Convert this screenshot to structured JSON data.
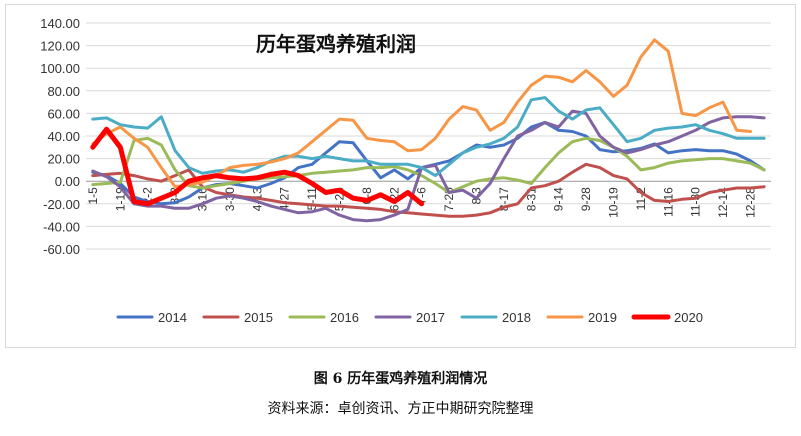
{
  "chart_data": {
    "type": "line",
    "title": "历年蛋鸡养殖利润",
    "xlabel": "",
    "ylabel": "",
    "ylim": [
      -60,
      140
    ],
    "y_ticks": [
      "140.00",
      "120.00",
      "100.00",
      "80.00",
      "60.00",
      "40.00",
      "20.00",
      "0.00",
      "-20.00",
      "-40.00",
      "-60.00"
    ],
    "x_ticks": [
      "1-5",
      "1-19",
      "2-2",
      "3-2",
      "3-16",
      "3-30",
      "4-13",
      "4-27",
      "5-11",
      "5-25",
      "6-8",
      "6-22",
      "7-6",
      "7-20",
      "8-3",
      "8-17",
      "8-31",
      "9-14",
      "9-28",
      "10-19",
      "11-2",
      "11-16",
      "11-30",
      "12-14",
      "12-28"
    ],
    "grid": "horizontal",
    "legend_position": "bottom",
    "series": [
      {
        "name": "2014",
        "color": "#4472c4",
        "width": 3,
        "values": [
          8,
          5,
          -2,
          -14,
          -18,
          -20,
          -19,
          -14,
          -6,
          -3,
          -2,
          -4,
          -6,
          -2,
          3,
          12,
          15,
          25,
          35,
          34,
          18,
          3,
          10,
          2,
          12,
          15,
          18,
          25,
          32,
          30,
          32,
          38,
          48,
          52,
          45,
          44,
          40,
          28,
          26,
          27,
          29,
          33,
          25,
          27,
          28,
          27,
          27,
          24,
          18,
          10
        ]
      },
      {
        "name": "2015",
        "color": "#c0504d",
        "width": 3,
        "values": [
          5,
          6,
          7,
          5,
          2,
          0,
          5,
          10,
          -5,
          -10,
          -12,
          -14,
          -15,
          -17,
          -19,
          -20,
          -21,
          -22,
          -22,
          -23,
          -24,
          -25,
          -27,
          -28,
          -29,
          -30,
          -31,
          -31,
          -30,
          -28,
          -23,
          -20,
          -6,
          -4,
          0,
          8,
          15,
          12,
          5,
          2,
          -10,
          -17,
          -18,
          -16,
          -15,
          -10,
          -8,
          -6,
          -6,
          -5
        ]
      },
      {
        "name": "2016",
        "color": "#9bbb59",
        "width": 3,
        "values": [
          -3,
          -2,
          -1,
          36,
          38,
          32,
          10,
          -4,
          -6,
          -4,
          -2,
          0,
          2,
          3,
          4,
          5,
          7,
          8,
          9,
          10,
          12,
          12,
          13,
          10,
          5,
          -2,
          -10,
          -5,
          0,
          2,
          3,
          1,
          -2,
          12,
          25,
          35,
          38,
          36,
          30,
          22,
          10,
          12,
          16,
          18,
          19,
          20,
          20,
          18,
          16,
          10
        ]
      },
      {
        "name": "2017",
        "color": "#8064a2",
        "width": 3,
        "values": [
          9,
          4,
          -5,
          -20,
          -22,
          -22,
          -24,
          -24,
          -20,
          -15,
          -13,
          -15,
          -18,
          -22,
          -25,
          -28,
          -27,
          -24,
          -30,
          -34,
          -35,
          -34,
          -30,
          -25,
          12,
          14,
          -10,
          -8,
          -15,
          -2,
          20,
          40,
          45,
          52,
          48,
          62,
          60,
          40,
          30,
          25,
          28,
          32,
          35,
          40,
          45,
          52,
          56,
          57,
          57,
          56
        ]
      },
      {
        "name": "2018",
        "color": "#4bacc6",
        "width": 3,
        "values": [
          55,
          56,
          50,
          48,
          47,
          57,
          27,
          12,
          7,
          9,
          10,
          8,
          12,
          18,
          22,
          22,
          20,
          22,
          20,
          18,
          18,
          15,
          15,
          15,
          12,
          5,
          15,
          25,
          30,
          33,
          38,
          48,
          72,
          74,
          62,
          55,
          63,
          65,
          50,
          35,
          38,
          45,
          47,
          48,
          50,
          45,
          42,
          38,
          38,
          38
        ]
      },
      {
        "name": "2019",
        "color": "#f79646",
        "width": 3,
        "values": [
          33,
          42,
          48,
          38,
          30,
          12,
          -5,
          -3,
          -1,
          5,
          12,
          14,
          15,
          17,
          20,
          25,
          35,
          45,
          55,
          54,
          38,
          36,
          35,
          27,
          28,
          38,
          55,
          66,
          63,
          45,
          52,
          70,
          85,
          93,
          92,
          88,
          98,
          88,
          75,
          85,
          110,
          125,
          115,
          60,
          58,
          65,
          70,
          45,
          44,
          null
        ]
      },
      {
        "name": "2020",
        "color": "#ff0000",
        "width": 5,
        "values": [
          30,
          46,
          30,
          -18,
          -20,
          -15,
          -10,
          0,
          3,
          5,
          3,
          2,
          3,
          6,
          8,
          5,
          -2,
          -10,
          -8,
          -15,
          -17,
          -12,
          -18,
          -10,
          -20,
          null,
          null,
          null,
          null,
          null,
          null,
          null,
          null,
          null,
          null,
          null,
          null,
          null,
          null,
          null,
          null,
          null,
          null,
          null,
          null,
          null,
          null,
          null,
          null,
          null
        ]
      }
    ]
  },
  "caption": {
    "figure": "图 6  历年蛋鸡养殖利润情况",
    "source": "资料来源：卓创资讯、方正中期研究院整理"
  }
}
